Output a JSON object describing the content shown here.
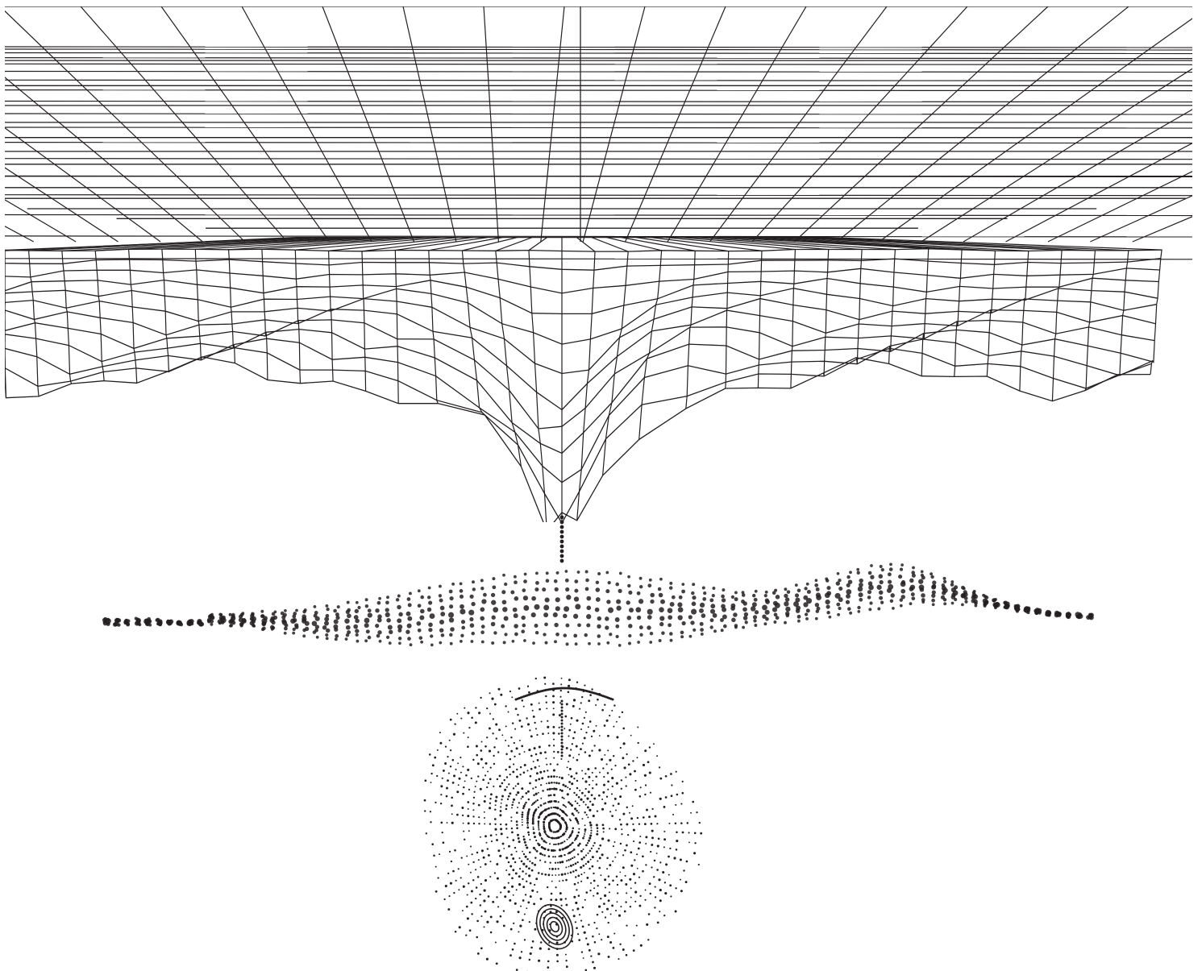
{
  "colors": {
    "background": "#ffffff",
    "ink": "#231f20"
  },
  "figure": {
    "panels": [
      {
        "id": "mesh",
        "kind": "wireframe-surface",
        "feature": "funnel",
        "radial_lines": 28,
        "depth_rows": 26,
        "lateral_columns": 36
      },
      {
        "id": "ribbon",
        "kind": "point-cloud",
        "feature": "wavy-ribbon",
        "point_columns": 95,
        "point_rows": 9
      },
      {
        "id": "blob",
        "kind": "point-cloud",
        "feature": "tilted-blob-with-spiral",
        "point_rings": 24,
        "points_per_ring": 90
      }
    ]
  }
}
